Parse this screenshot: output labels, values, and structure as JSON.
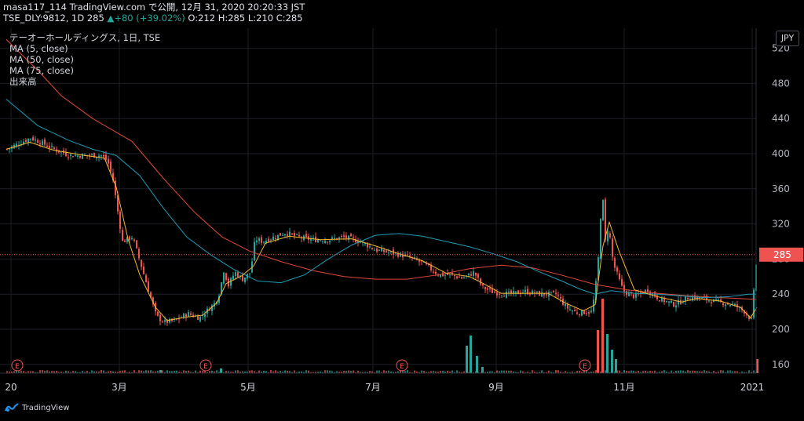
{
  "header": {
    "line1": "masa117_114 TradingView.com で公開, 12月 31, 2020 20:20:33 JST",
    "line2_prefix": "TSE_DLY:9812, 1D 285 ",
    "change": "▲+80 (+39.02%)",
    "ohlc": " O:212 H:285 L:210 C:285"
  },
  "legend": {
    "title": "テーオーホールディングス, 1日, TSE",
    "ma5": "MA (5, close)",
    "ma50": "MA (50, close)",
    "ma75": "MA (75, close)",
    "volume": "出来高"
  },
  "currency": "JPY",
  "last_price_label": "285",
  "branding": "TradingView",
  "colors": {
    "up": "#26a69a",
    "down": "#ef5350",
    "ma5": "#f5b731",
    "ma50": "#1e9bb5",
    "ma75": "#e0483a",
    "background": "#000000"
  },
  "chart_data": {
    "type": "candlestick",
    "ylim": [
      150,
      525
    ],
    "y_ticks": [
      "160",
      "200",
      "240",
      "280",
      "320",
      "360",
      "400",
      "440",
      "480",
      "520"
    ],
    "x_ticks": [
      "20",
      "3月",
      "5月",
      "7月",
      "9月",
      "11月",
      "2021"
    ],
    "events": [
      "E",
      "E",
      "E",
      "E"
    ],
    "last_price": 285,
    "price_path": [
      [
        0,
        405
      ],
      [
        30,
        418
      ],
      [
        45,
        412
      ],
      [
        60,
        405
      ],
      [
        80,
        398
      ],
      [
        100,
        398
      ],
      [
        120,
        398
      ],
      [
        128,
        392
      ],
      [
        135,
        370
      ],
      [
        140,
        340
      ],
      [
        147,
        300
      ],
      [
        160,
        305
      ],
      [
        175,
        260
      ],
      [
        190,
        215
      ],
      [
        200,
        208
      ],
      [
        215,
        210
      ],
      [
        230,
        218
      ],
      [
        245,
        213
      ],
      [
        265,
        230
      ],
      [
        272,
        245
      ],
      [
        275,
        270
      ],
      [
        282,
        250
      ],
      [
        290,
        265
      ],
      [
        300,
        257
      ],
      [
        310,
        265
      ],
      [
        316,
        303
      ],
      [
        325,
        300
      ],
      [
        340,
        305
      ],
      [
        355,
        310
      ],
      [
        370,
        305
      ],
      [
        390,
        302
      ],
      [
        410,
        302
      ],
      [
        430,
        305
      ],
      [
        450,
        300
      ],
      [
        470,
        290
      ],
      [
        490,
        287
      ],
      [
        510,
        283
      ],
      [
        530,
        275
      ],
      [
        550,
        262
      ],
      [
        565,
        262
      ],
      [
        580,
        258
      ],
      [
        595,
        265
      ],
      [
        605,
        248
      ],
      [
        620,
        242
      ],
      [
        640,
        240
      ],
      [
        660,
        243
      ],
      [
        680,
        240
      ],
      [
        700,
        240
      ],
      [
        712,
        225
      ],
      [
        725,
        219
      ],
      [
        745,
        220
      ],
      [
        752,
        265
      ],
      [
        758,
        360
      ],
      [
        762,
        300
      ],
      [
        766,
        318
      ],
      [
        772,
        275
      ],
      [
        785,
        243
      ],
      [
        800,
        237
      ],
      [
        815,
        245
      ],
      [
        830,
        235
      ],
      [
        850,
        228
      ],
      [
        870,
        237
      ],
      [
        885,
        235
      ],
      [
        900,
        232
      ],
      [
        925,
        228
      ],
      [
        940,
        220
      ],
      [
        948,
        210
      ],
      [
        955,
        285
      ]
    ],
    "ma5_path": [
      [
        0,
        405
      ],
      [
        30,
        413
      ],
      [
        60,
        404
      ],
      [
        100,
        398
      ],
      [
        125,
        395
      ],
      [
        140,
        362
      ],
      [
        155,
        303
      ],
      [
        170,
        262
      ],
      [
        190,
        225
      ],
      [
        205,
        210
      ],
      [
        230,
        214
      ],
      [
        250,
        216
      ],
      [
        268,
        230
      ],
      [
        280,
        252
      ],
      [
        300,
        261
      ],
      [
        315,
        272
      ],
      [
        330,
        298
      ],
      [
        360,
        306
      ],
      [
        400,
        302
      ],
      [
        440,
        303
      ],
      [
        470,
        295
      ],
      [
        500,
        286
      ],
      [
        530,
        278
      ],
      [
        560,
        264
      ],
      [
        590,
        260
      ],
      [
        610,
        251
      ],
      [
        630,
        241
      ],
      [
        660,
        241
      ],
      [
        690,
        241
      ],
      [
        712,
        230
      ],
      [
        735,
        221
      ],
      [
        750,
        228
      ],
      [
        760,
        295
      ],
      [
        768,
        322
      ],
      [
        780,
        290
      ],
      [
        800,
        245
      ],
      [
        830,
        237
      ],
      [
        860,
        231
      ],
      [
        880,
        235
      ],
      [
        910,
        232
      ],
      [
        935,
        225
      ],
      [
        948,
        213
      ],
      [
        956,
        225
      ]
    ],
    "ma50_path": [
      [
        0,
        462
      ],
      [
        40,
        432
      ],
      [
        80,
        415
      ],
      [
        110,
        405
      ],
      [
        140,
        398
      ],
      [
        170,
        375
      ],
      [
        200,
        338
      ],
      [
        230,
        305
      ],
      [
        260,
        285
      ],
      [
        290,
        268
      ],
      [
        320,
        255
      ],
      [
        350,
        253
      ],
      [
        380,
        262
      ],
      [
        410,
        280
      ],
      [
        440,
        296
      ],
      [
        470,
        307
      ],
      [
        500,
        309
      ],
      [
        530,
        306
      ],
      [
        560,
        300
      ],
      [
        590,
        294
      ],
      [
        620,
        286
      ],
      [
        650,
        277
      ],
      [
        680,
        265
      ],
      [
        710,
        254
      ],
      [
        730,
        246
      ],
      [
        750,
        240
      ],
      [
        770,
        244
      ],
      [
        800,
        241
      ],
      [
        830,
        240
      ],
      [
        860,
        238
      ],
      [
        890,
        236
      ],
      [
        920,
        237
      ],
      [
        945,
        240
      ],
      [
        955,
        240
      ]
    ],
    "ma75_path": [
      [
        0,
        530
      ],
      [
        40,
        495
      ],
      [
        70,
        466
      ],
      [
        110,
        440
      ],
      [
        160,
        414
      ],
      [
        200,
        372
      ],
      [
        240,
        333
      ],
      [
        275,
        305
      ],
      [
        310,
        289
      ],
      [
        350,
        277
      ],
      [
        390,
        267
      ],
      [
        430,
        260
      ],
      [
        470,
        257
      ],
      [
        510,
        257
      ],
      [
        550,
        262
      ],
      [
        590,
        269
      ],
      [
        630,
        273
      ],
      [
        670,
        270
      ],
      [
        710,
        261
      ],
      [
        750,
        251
      ],
      [
        790,
        245
      ],
      [
        830,
        241
      ],
      [
        870,
        238
      ],
      [
        910,
        236
      ],
      [
        955,
        234
      ]
    ],
    "volume_spikes": [
      [
        195,
        4
      ],
      [
        272,
        6
      ],
      [
        585,
        35
      ],
      [
        590,
        48
      ],
      [
        598,
        22
      ],
      [
        605,
        8
      ],
      [
        752,
        55
      ],
      [
        758,
        95
      ],
      [
        764,
        50
      ],
      [
        770,
        30
      ],
      [
        775,
        18
      ],
      [
        955,
        18
      ]
    ]
  }
}
